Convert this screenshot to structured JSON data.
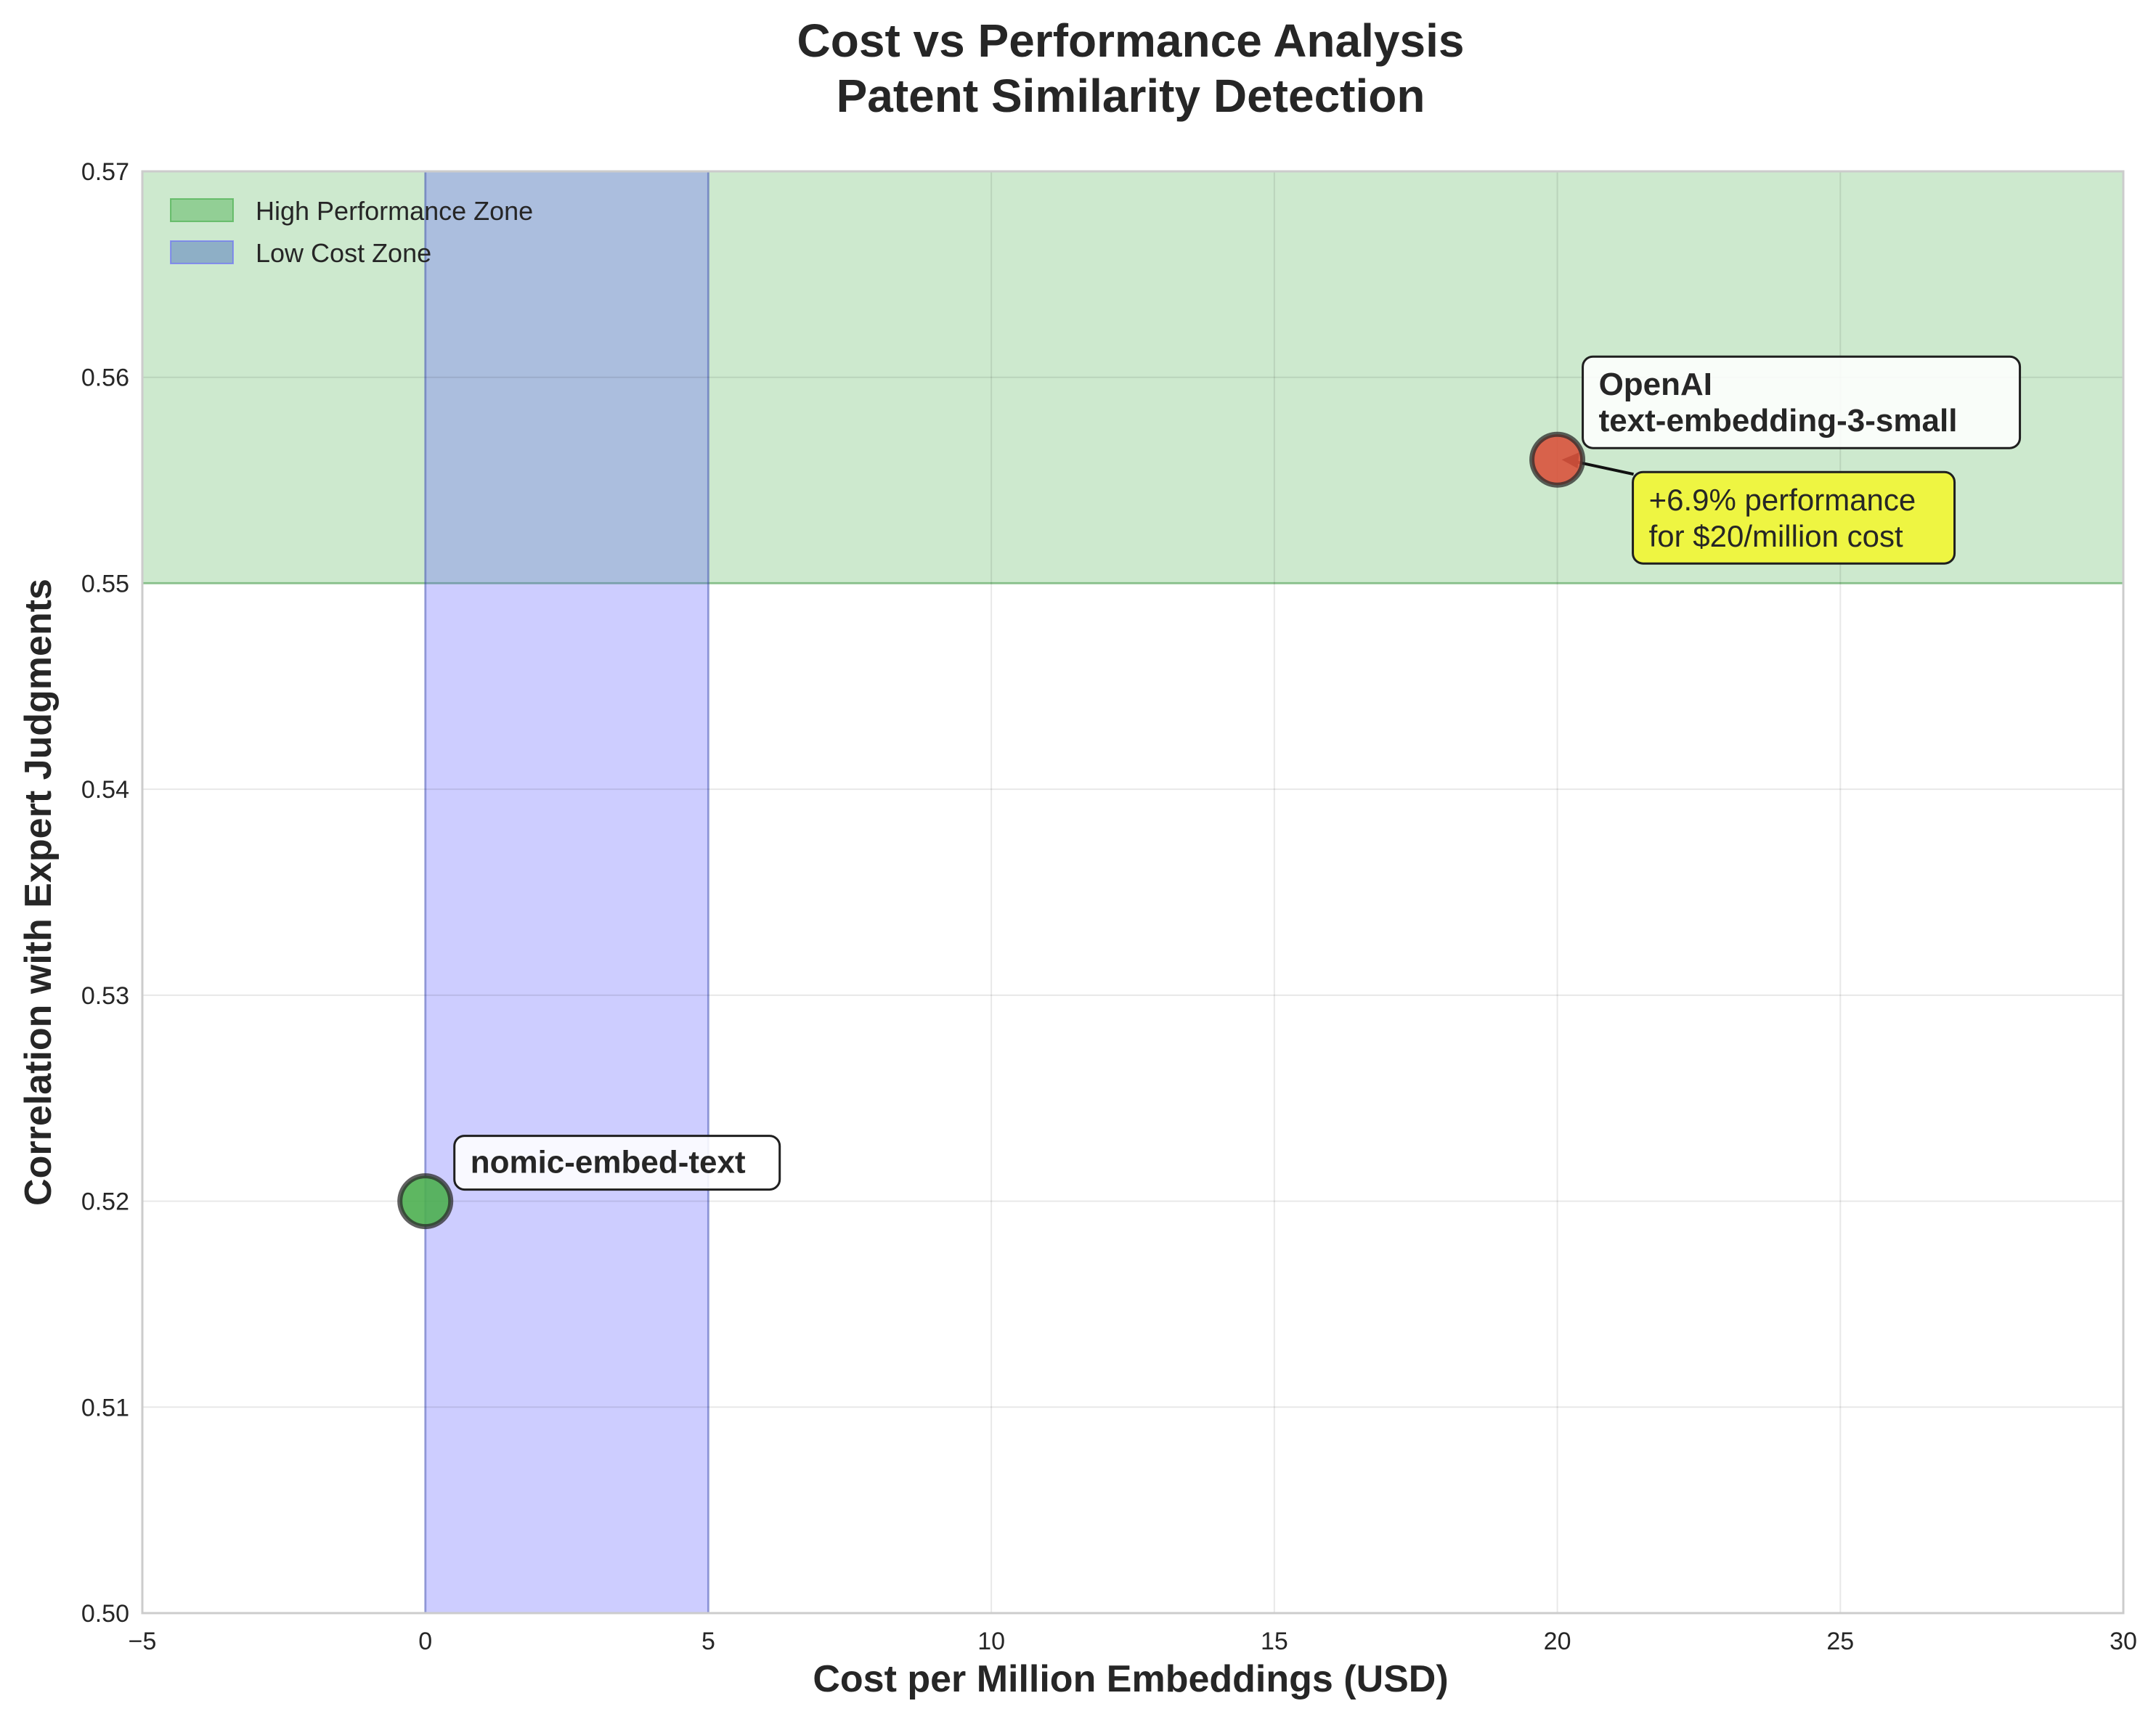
{
  "chart_data": {
    "type": "scatter",
    "title_lines": [
      "Cost vs Performance Analysis",
      "Patent Similarity Detection"
    ],
    "xlabel": "Cost per Million Embeddings (USD)",
    "ylabel": "Correlation with Expert Judgments",
    "xlim": [
      -5,
      30
    ],
    "ylim": [
      0.5,
      0.57
    ],
    "xticks": [
      -5,
      0,
      5,
      10,
      15,
      20,
      25,
      30
    ],
    "xtick_labels": [
      "−5",
      "0",
      "5",
      "10",
      "15",
      "20",
      "25",
      "30"
    ],
    "yticks": [
      0.5,
      0.51,
      0.52,
      0.53,
      0.54,
      0.55,
      0.56,
      0.57
    ],
    "ytick_labels": [
      "0.50",
      "0.51",
      "0.52",
      "0.53",
      "0.54",
      "0.55",
      "0.56",
      "0.57"
    ],
    "grid": true,
    "legend_position": "top-left",
    "zones": [
      {
        "label": "High Performance Zone",
        "axis": "y",
        "from": 0.55,
        "to": 0.57,
        "color": "#4caf50"
      },
      {
        "label": "Low Cost Zone",
        "axis": "x",
        "from": 0,
        "to": 5,
        "color": "#6666ff"
      }
    ],
    "points": [
      {
        "label_lines": [
          "nomic-embed-text"
        ],
        "x": 0,
        "y": 0.52,
        "color": "#4caf50"
      },
      {
        "label_lines": [
          "OpenAI",
          "text-embedding-3-small"
        ],
        "x": 20,
        "y": 0.556,
        "color": "#d9533d"
      }
    ],
    "annotation": {
      "text_lines": [
        "+6.9% performance",
        "for $20/million cost"
      ],
      "target_point": 1,
      "color": "#eef542"
    }
  }
}
